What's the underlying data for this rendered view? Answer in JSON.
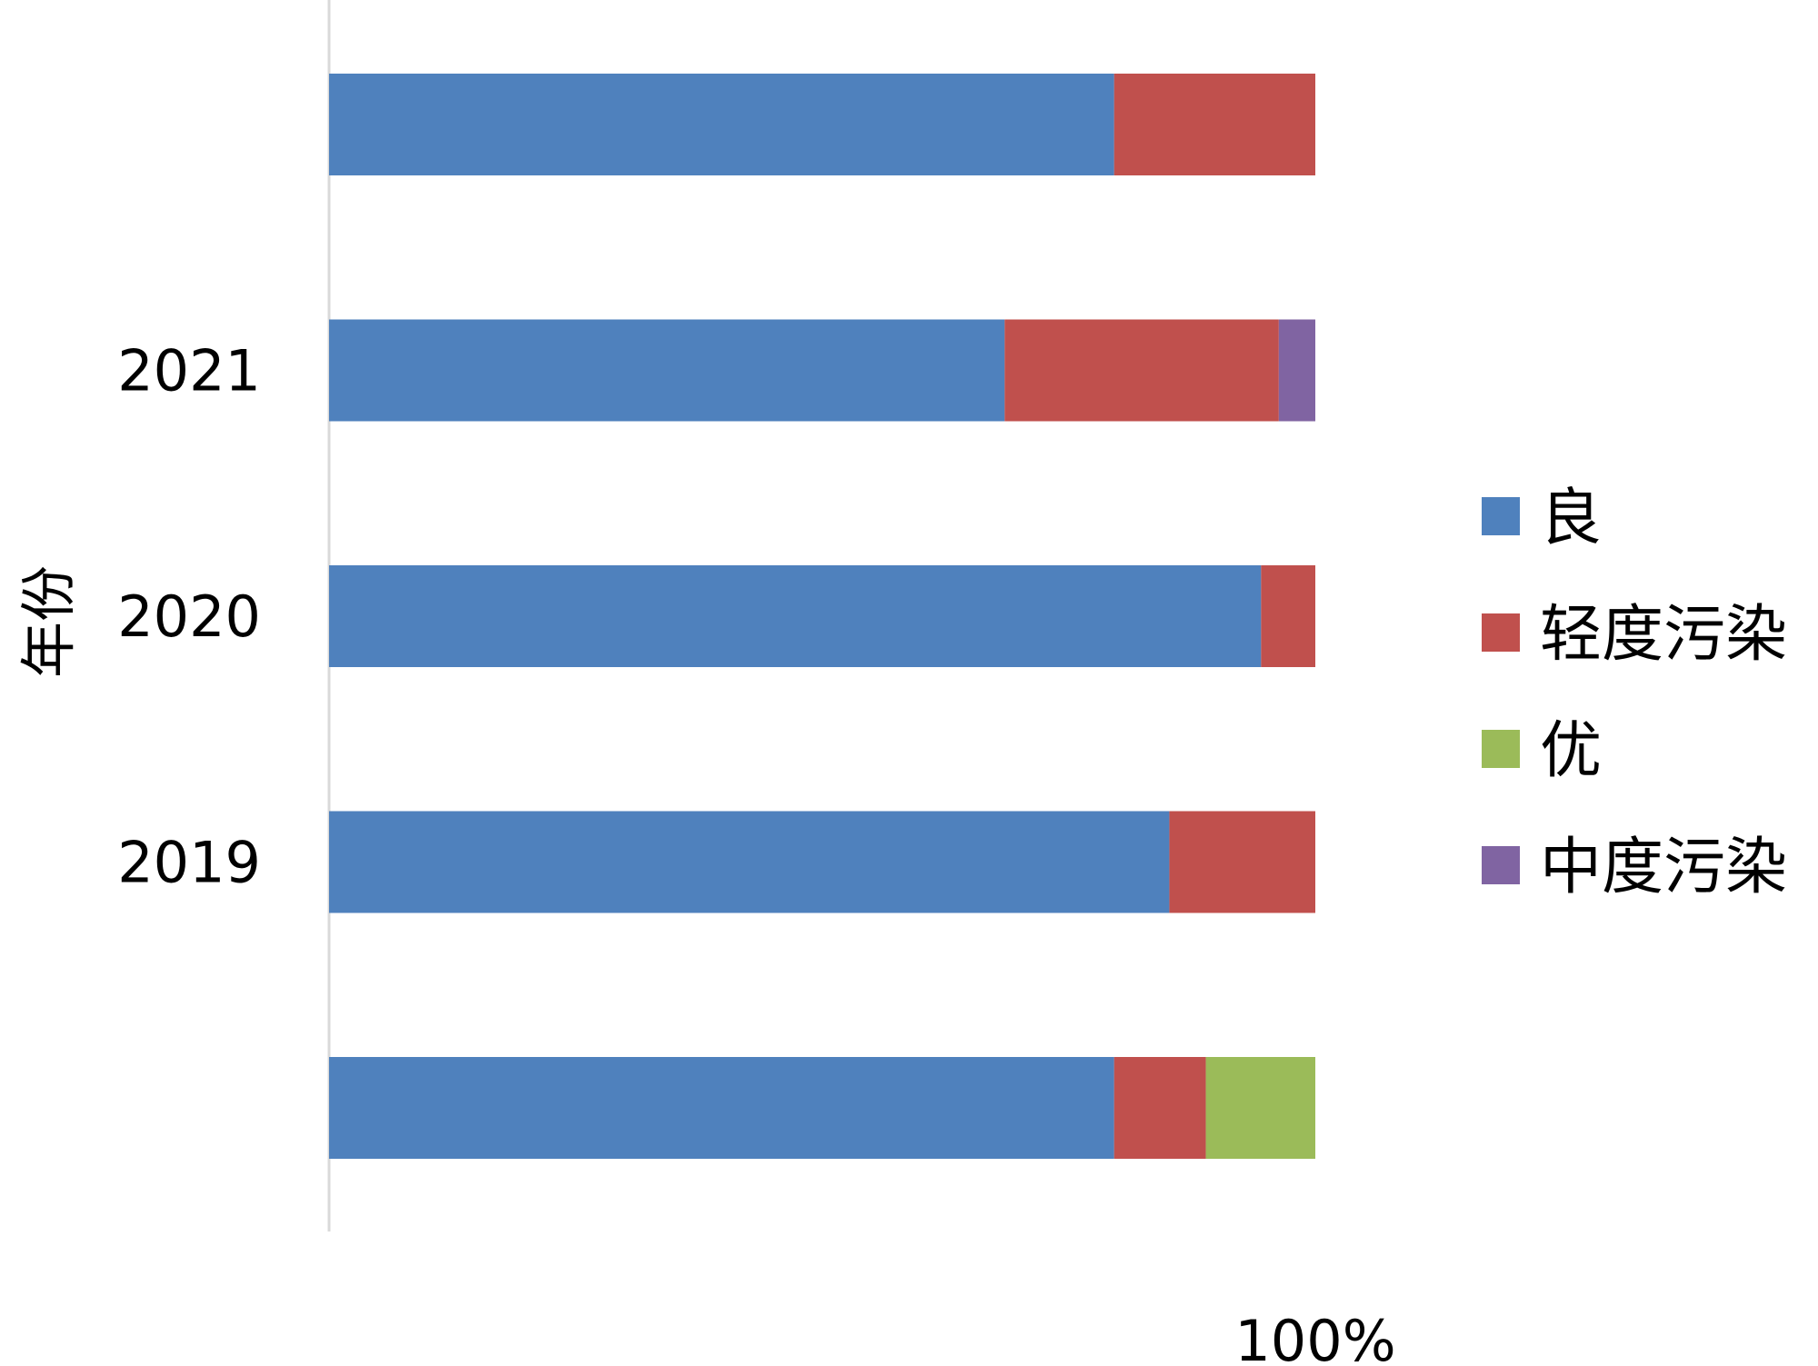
{
  "chart_data": {
    "type": "bar",
    "orientation": "horizontal",
    "stacked": "percent",
    "ylabel": "年份",
    "categories": [
      "",
      "2021",
      "2020",
      "2019",
      ""
    ],
    "x_tick_labels": [
      "",
      "",
      "100%"
    ],
    "xlim": [
      0,
      100
    ],
    "grid": false,
    "legend_position": "right",
    "series": [
      {
        "name": "良",
        "color": "#4F81BD",
        "values": [
          79.6,
          68.5,
          94.5,
          85.2,
          79.6
        ]
      },
      {
        "name": "轻度污染",
        "color": "#C0504D",
        "values": [
          20.4,
          27.8,
          5.5,
          14.8,
          9.3
        ]
      },
      {
        "name": "优",
        "color": "#9BBB59",
        "values": [
          0,
          0,
          0,
          0,
          11.1
        ]
      },
      {
        "name": "中度污染",
        "color": "#8064A2",
        "values": [
          0,
          3.7,
          0,
          0,
          0
        ]
      }
    ]
  }
}
